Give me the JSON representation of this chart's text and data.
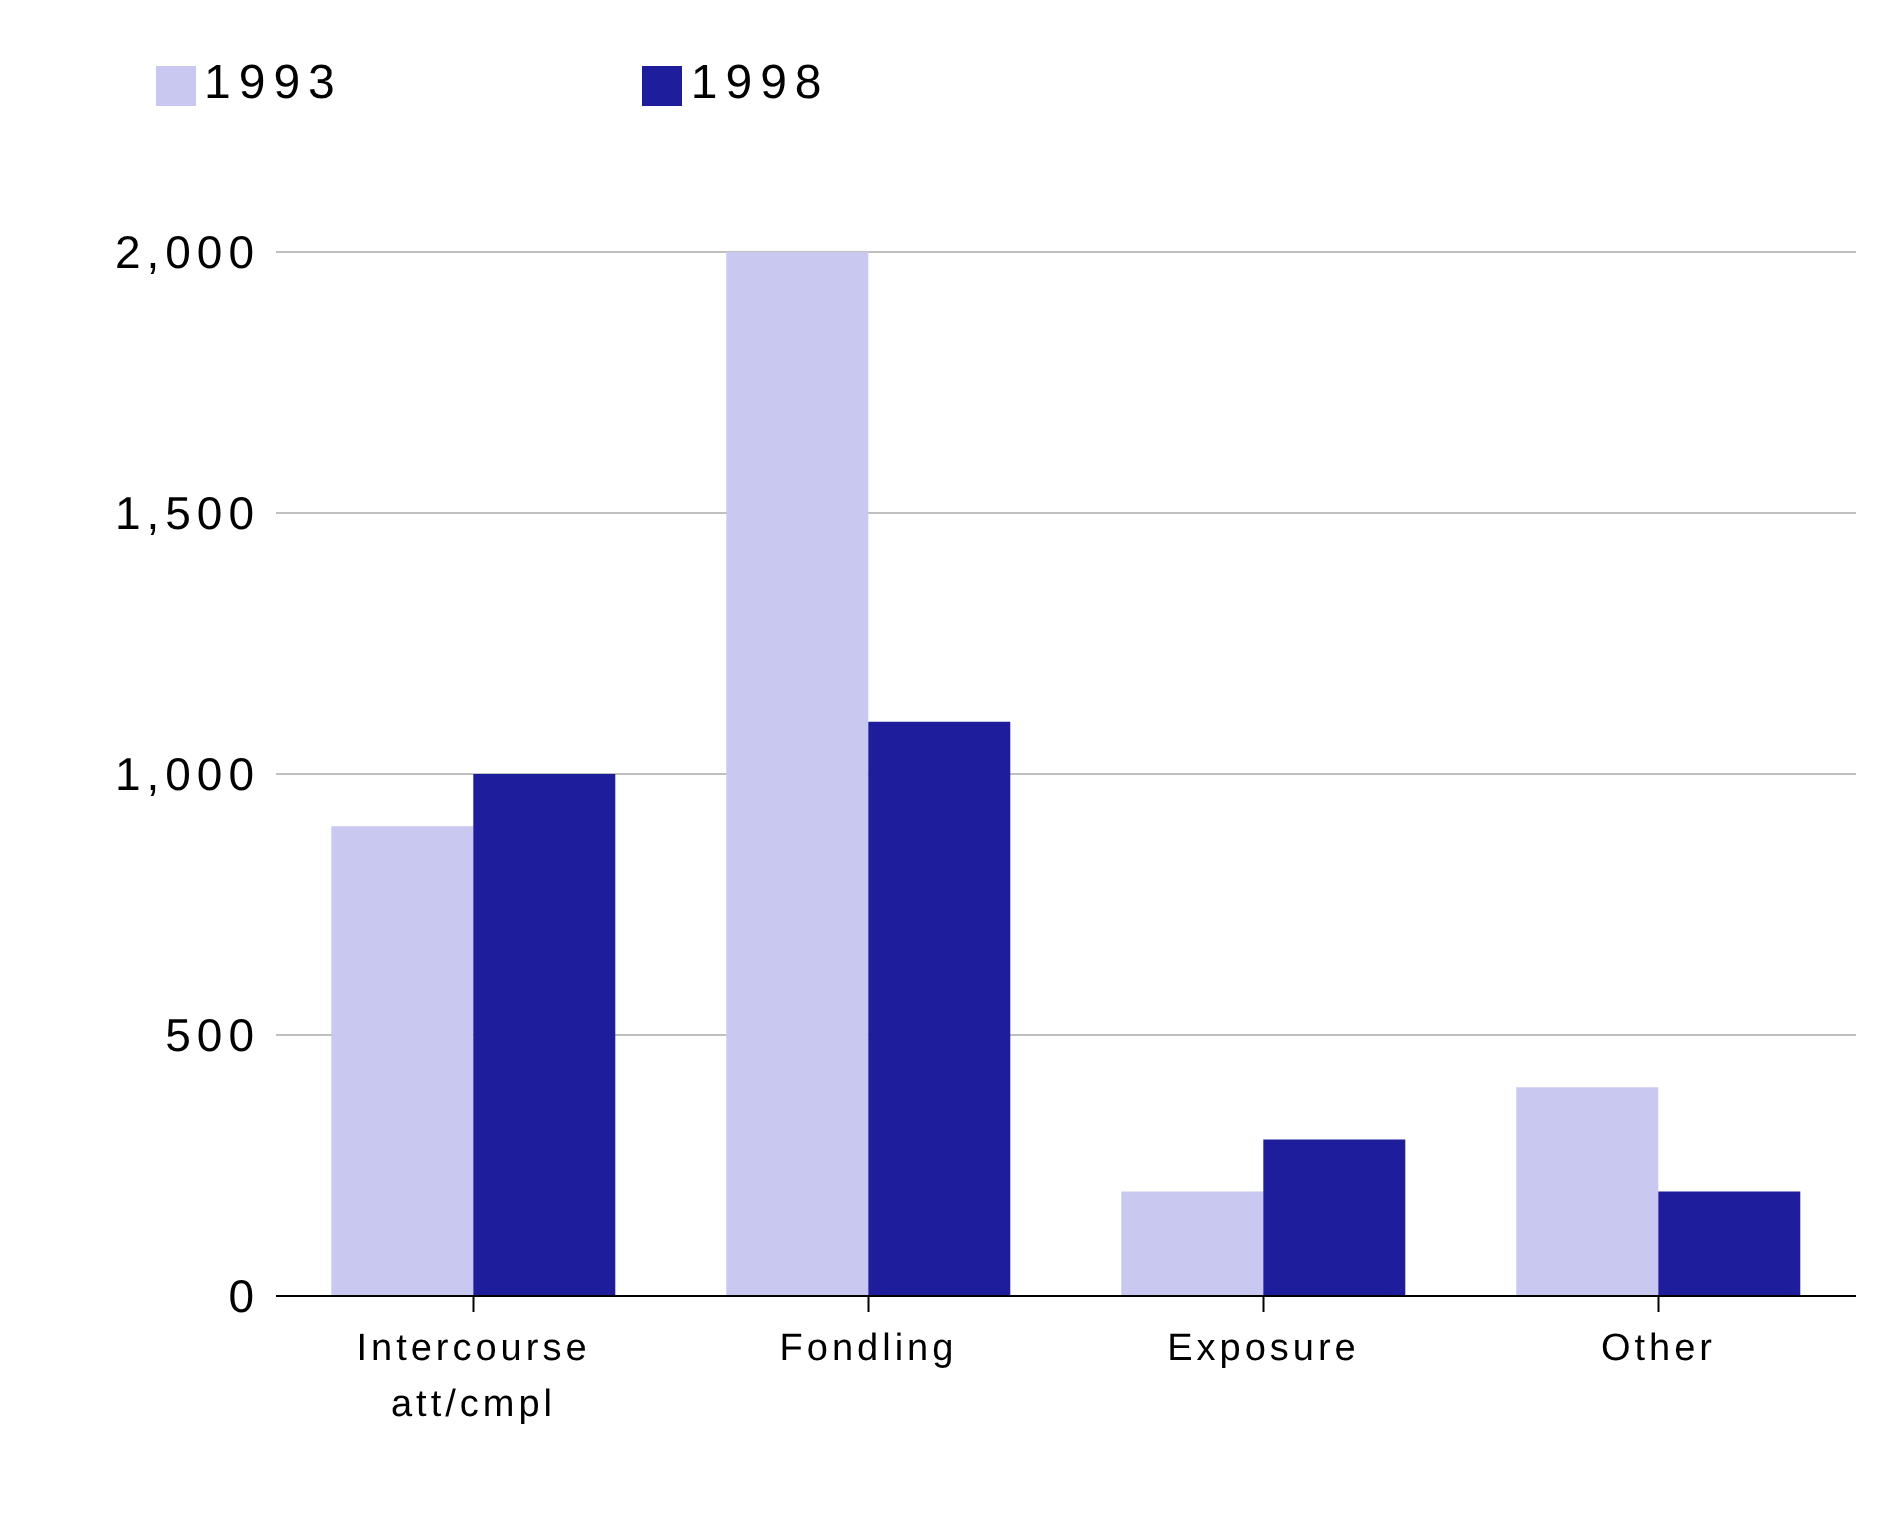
{
  "chart_data": {
    "type": "bar",
    "categories": [
      "Intercourse att/cmpl",
      "Fondling",
      "Exposure",
      "Other"
    ],
    "series": [
      {
        "name": "1993",
        "color": "#c8c8f0",
        "values": [
          900,
          2000,
          200,
          400
        ]
      },
      {
        "name": "1998",
        "color": "#1e1e9c",
        "values": [
          1000,
          1100,
          300,
          200
        ]
      }
    ],
    "ylim": [
      0,
      2000
    ],
    "yticks": [
      {
        "value": 0,
        "label": "0"
      },
      {
        "value": 500,
        "label": "500"
      },
      {
        "value": 1000,
        "label": "1,000"
      },
      {
        "value": 1500,
        "label": "1,500"
      },
      {
        "value": 2000,
        "label": "2,000"
      }
    ],
    "grid": "y",
    "legend": "top left"
  }
}
